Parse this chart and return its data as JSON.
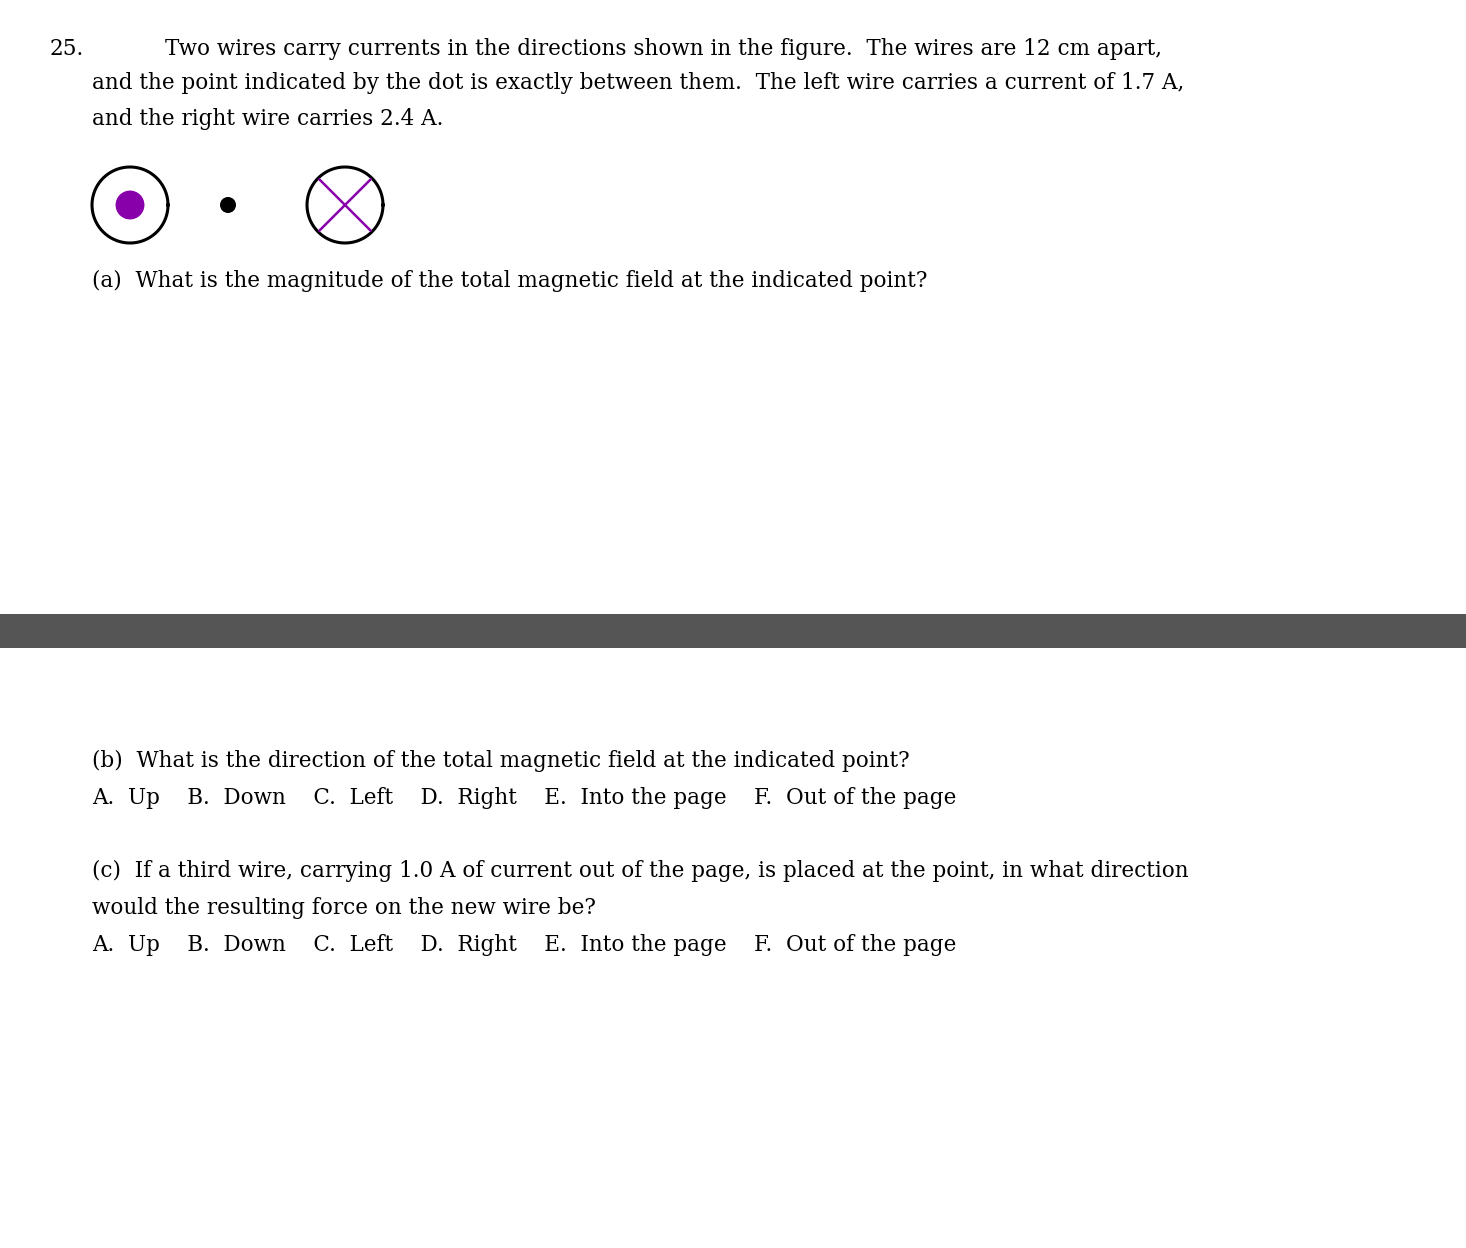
{
  "problem_number": "25.",
  "problem_text_line1": "Two wires carry currents in the directions shown in the figure.  The wires are 12 cm apart,",
  "problem_text_line2": "and the point indicated by the dot is exactly between them.  The left wire carries a current of 1.7 A,",
  "problem_text_line3": "and the right wire carries 2.4 A.",
  "part_a_text": "(a)  What is the magnitude of the total magnetic field at the indicated point?",
  "part_b_text": "(b)  What is the direction of the total magnetic field at the indicated point?",
  "part_b_choices": "A.  Up    B.  Down    C.  Left    D.  Right    E.  Into the page    F.  Out of the page",
  "part_c_text": "(c)  If a third wire, carrying 1.0 A of current out of the page, is placed at the point, in what direction",
  "part_c_text2": "would the resulting force on the new wire be?",
  "part_c_choices": "A.  Up    B.  Down    C.  Left    D.  Right    E.  Into the page    F.  Out of the page",
  "wire_circle_color": "#000000",
  "left_dot_color": "#8800aa",
  "right_x_color": "#8800aa",
  "separator_color": "#555555",
  "background_color": "#ffffff",
  "font_size": 15.5
}
